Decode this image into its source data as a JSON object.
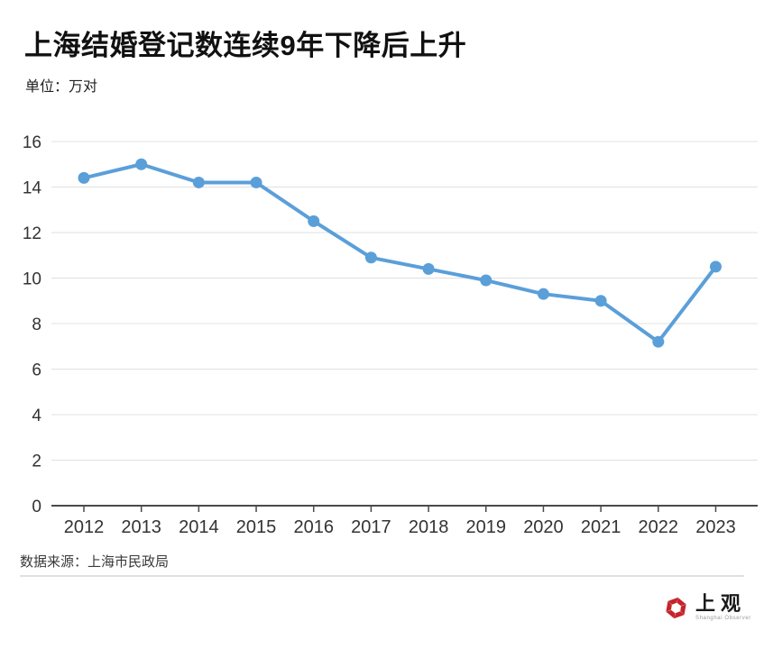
{
  "header": {
    "title": "上海结婚登记数连续9年下降后上升",
    "subtitle": "单位：万对"
  },
  "chart_data": {
    "type": "line",
    "title": "上海结婚登记数连续9年下降后上升",
    "unit_label": "单位：万对",
    "categories": [
      "2012",
      "2013",
      "2014",
      "2015",
      "2016",
      "2017",
      "2018",
      "2019",
      "2020",
      "2021",
      "2022",
      "2023"
    ],
    "values": [
      14.4,
      15.0,
      14.2,
      14.2,
      12.5,
      10.9,
      10.4,
      9.9,
      9.3,
      9.0,
      7.2,
      10.5
    ],
    "ylim": [
      0,
      16
    ],
    "ytick_step": 2,
    "grid": true,
    "legend": "none",
    "line_color": "#5b9fd9",
    "grid_color": "#e0e0e0",
    "axis_color": "#4a4a4a",
    "tick_label_color": "#333333"
  },
  "footer": {
    "source": "数据来源：上海市民政局"
  },
  "logo": {
    "name": "上观",
    "subname": "Shanghai Observer",
    "color": "#c5242b"
  }
}
